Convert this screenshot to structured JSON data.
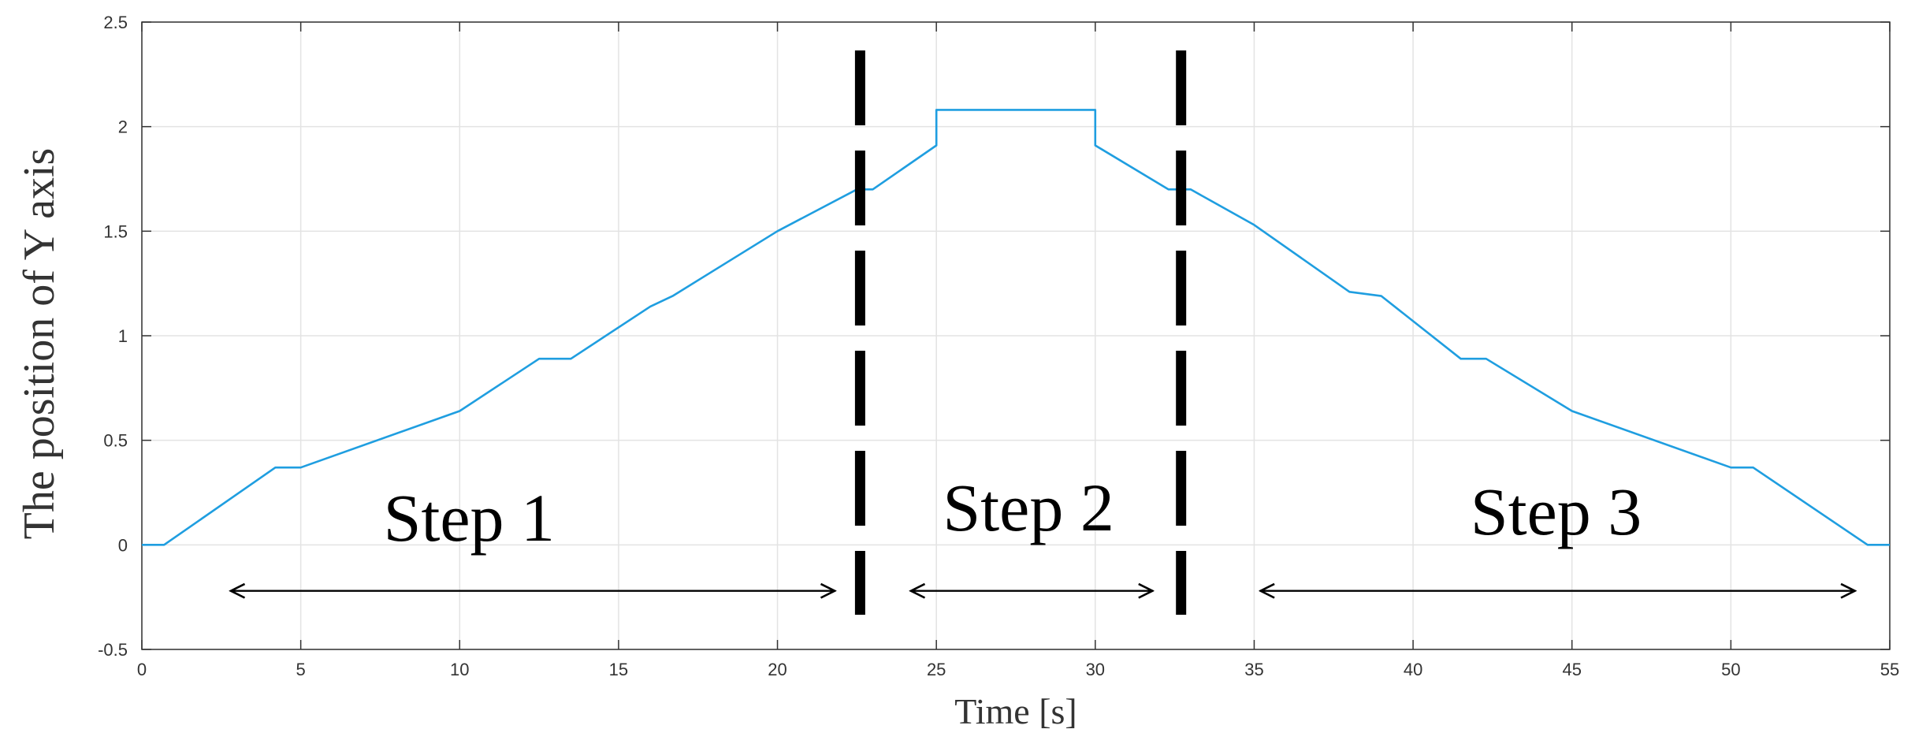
{
  "chart_data": {
    "type": "line",
    "xlabel": "Time [s]",
    "ylabel": "The position of Y axis",
    "xlim": [
      0,
      55
    ],
    "ylim": [
      -0.5,
      2.5
    ],
    "x_ticks": [
      "0",
      "5",
      "10",
      "15",
      "20",
      "25",
      "30",
      "35",
      "40",
      "45",
      "50",
      "55"
    ],
    "y_ticks": [
      "-0.5",
      "0",
      "0.5",
      "1",
      "1.5",
      "2",
      "2.5"
    ],
    "grid": true,
    "line_color": "#1f9ee0",
    "series": [
      {
        "x": [
          0,
          0.7,
          4.2,
          5.0,
          10.0,
          12.5,
          13.5,
          16.0,
          16.7,
          20.0,
          22.5,
          23.0,
          25.0,
          25.0,
          30.0,
          30.0,
          32.3,
          33.0,
          35.0,
          38.0,
          39.0,
          41.5,
          42.3,
          45.0,
          50.0,
          50.7,
          54.3,
          55.0
        ],
        "y": [
          0,
          0,
          0.37,
          0.37,
          0.64,
          0.89,
          0.89,
          1.14,
          1.19,
          1.5,
          1.7,
          1.7,
          1.91,
          2.08,
          2.08,
          1.91,
          1.7,
          1.7,
          1.53,
          1.21,
          1.19,
          0.89,
          0.89,
          0.64,
          0.37,
          0.37,
          0,
          0
        ]
      }
    ],
    "dividers_x": [
      22.6,
      32.7
    ],
    "divider_color": "#000000",
    "annotations": [
      {
        "text": "Step 1",
        "x_from": 2.8,
        "x_to": 21.8,
        "label_x": 10.3,
        "label_y": 0.02
      },
      {
        "text": "Step 2",
        "x_from": 24.2,
        "x_to": 31.8,
        "label_x": 27.9,
        "label_y": 0.07
      },
      {
        "text": "Step 3",
        "x_from": 35.2,
        "x_to": 53.9,
        "label_x": 44.5,
        "label_y": 0.05
      }
    ],
    "arrow_y": -0.22
  }
}
